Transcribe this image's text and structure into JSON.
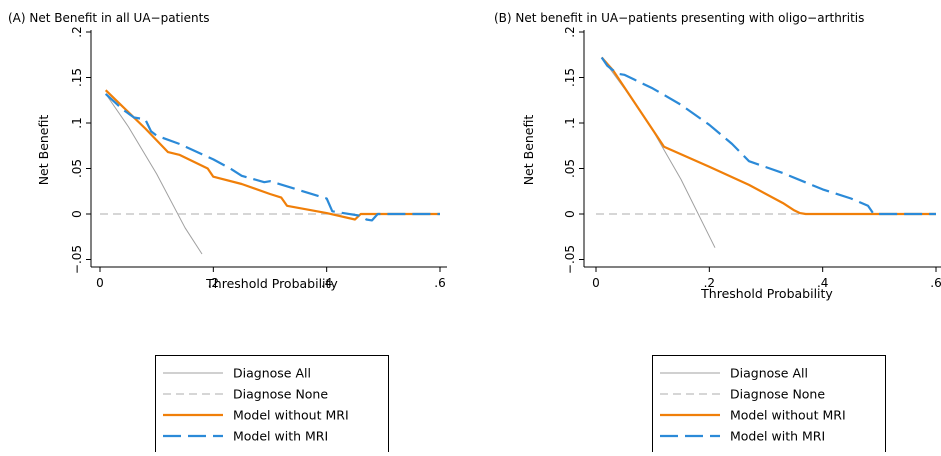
{
  "chart_data": [
    {
      "type": "line",
      "title": "(A) Net Benefit in all UA−patients",
      "xlabel": "Threshold Probability",
      "ylabel": "Net Benefit",
      "xlim": [
        0,
        0.6
      ],
      "ylim": [
        -0.05,
        0.2
      ],
      "xticks": [
        {
          "value": 0,
          "label": "0"
        },
        {
          "value": 0.2,
          "label": ".2"
        },
        {
          "value": 0.4,
          "label": ".4"
        },
        {
          "value": 0.6,
          "label": ".6"
        }
      ],
      "yticks": [
        {
          "value": -0.05,
          "label": "−.05"
        },
        {
          "value": 0,
          "label": "0"
        },
        {
          "value": 0.05,
          "label": ".05"
        },
        {
          "value": 0.1,
          "label": ".1"
        },
        {
          "value": 0.15,
          "label": ".15"
        },
        {
          "value": 0.2,
          "label": ".2"
        }
      ],
      "grid": false,
      "legend_position": "bottom",
      "series": [
        {
          "name": "Diagnose All",
          "color": "#a0a0a0",
          "style": "solid",
          "x": [
            0.01,
            0.05,
            0.1,
            0.15,
            0.18
          ],
          "y": [
            0.132,
            0.096,
            0.044,
            -0.015,
            -0.044
          ]
        },
        {
          "name": "Diagnose None",
          "color": "#bdbdbd",
          "style": "dash",
          "x": [
            0.0,
            0.6
          ],
          "y": [
            0.0,
            0.0
          ]
        },
        {
          "name": "Model without MRI",
          "color": "#f07f09",
          "style": "solid",
          "x": [
            0.01,
            0.05,
            0.08,
            0.12,
            0.14,
            0.19,
            0.2,
            0.25,
            0.3,
            0.32,
            0.33,
            0.4,
            0.45,
            0.46,
            0.6
          ],
          "y": [
            0.136,
            0.112,
            0.094,
            0.068,
            0.065,
            0.05,
            0.041,
            0.033,
            0.022,
            0.018,
            0.009,
            0.001,
            -0.006,
            0.0,
            0.0
          ]
        },
        {
          "name": "Model with MRI",
          "color": "#2b8ad8",
          "style": "longdash",
          "x": [
            0.01,
            0.04,
            0.06,
            0.08,
            0.09,
            0.1,
            0.14,
            0.2,
            0.23,
            0.25,
            0.29,
            0.3,
            0.4,
            0.41,
            0.42,
            0.46,
            0.47,
            0.48,
            0.49,
            0.6
          ],
          "y": [
            0.132,
            0.115,
            0.106,
            0.104,
            0.091,
            0.086,
            0.077,
            0.06,
            0.05,
            0.042,
            0.035,
            0.036,
            0.017,
            0.003,
            0.002,
            -0.002,
            -0.006,
            -0.007,
            0.0,
            0.0
          ]
        }
      ]
    },
    {
      "type": "line",
      "title": "(B) Net benefit in UA−patients presenting with oligo−arthritis",
      "xlabel": "Threshold Probability",
      "ylabel": "Net Benefit",
      "xlim": [
        0,
        0.6
      ],
      "ylim": [
        -0.05,
        0.2
      ],
      "xticks": [
        {
          "value": 0,
          "label": "0"
        },
        {
          "value": 0.2,
          "label": ".2"
        },
        {
          "value": 0.4,
          "label": ".4"
        },
        {
          "value": 0.6,
          "label": ".6"
        }
      ],
      "yticks": [
        {
          "value": -0.05,
          "label": "−.05"
        },
        {
          "value": 0,
          "label": "0"
        },
        {
          "value": 0.05,
          "label": ".05"
        },
        {
          "value": 0.1,
          "label": ".1"
        },
        {
          "value": 0.15,
          "label": ".15"
        },
        {
          "value": 0.2,
          "label": ".2"
        }
      ],
      "grid": false,
      "legend_position": "bottom",
      "series": [
        {
          "name": "Diagnose All",
          "color": "#a0a0a0",
          "style": "solid",
          "x": [
            0.01,
            0.05,
            0.1,
            0.15,
            0.21
          ],
          "y": [
            0.172,
            0.138,
            0.092,
            0.038,
            -0.037
          ]
        },
        {
          "name": "Diagnose None",
          "color": "#bdbdbd",
          "style": "dash",
          "x": [
            0.0,
            0.6
          ],
          "y": [
            0.0,
            0.0
          ]
        },
        {
          "name": "Model without MRI",
          "color": "#f07f09",
          "style": "solid",
          "x": [
            0.01,
            0.02,
            0.03,
            0.12,
            0.2,
            0.27,
            0.33,
            0.35,
            0.36,
            0.37,
            0.6
          ],
          "y": [
            0.172,
            0.165,
            0.158,
            0.074,
            0.052,
            0.032,
            0.012,
            0.004,
            0.001,
            0.0,
            0.0
          ]
        },
        {
          "name": "Model with MRI",
          "color": "#2b8ad8",
          "style": "longdash",
          "x": [
            0.01,
            0.02,
            0.03,
            0.04,
            0.05,
            0.1,
            0.15,
            0.2,
            0.24,
            0.27,
            0.33,
            0.4,
            0.45,
            0.48,
            0.49,
            0.6
          ],
          "y": [
            0.172,
            0.163,
            0.158,
            0.154,
            0.153,
            0.138,
            0.12,
            0.098,
            0.077,
            0.058,
            0.045,
            0.027,
            0.017,
            0.009,
            0.0,
            0.0
          ]
        }
      ]
    }
  ]
}
